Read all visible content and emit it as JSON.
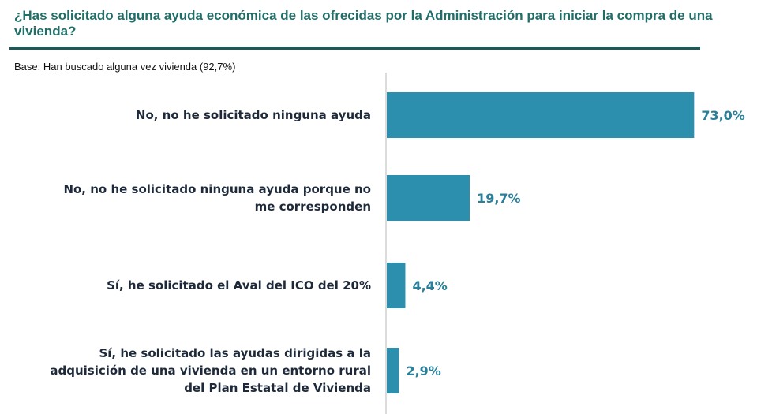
{
  "title": "¿Has solicitado alguna ayuda económica de las ofrecidas por la Administración para iniciar la compra de una vivienda?",
  "subtitle": "Base: Han buscado alguna vez vivienda (92,7%)",
  "colors": {
    "bar": "#2d8fae",
    "value": "#2a7f9b",
    "title": "#1f6e67",
    "axis": "#d0d0d0"
  },
  "chart_data": {
    "type": "bar",
    "orientation": "horizontal",
    "categories": [
      [
        "No, no he solicitado ninguna ayuda"
      ],
      [
        "No, no he solicitado ninguna ayuda porque no",
        "me corresponden"
      ],
      [
        "Sí, he solicitado el Aval del ICO del 20%"
      ],
      [
        "Sí, he solicitado las ayudas dirigidas a la",
        "adquisición de una vivienda en un entorno rural",
        "del Plan Estatal de Vivienda"
      ]
    ],
    "values": [
      73.0,
      19.7,
      4.4,
      2.9
    ],
    "value_labels": [
      "73,0%",
      "19,7%",
      "4,4%",
      "2,9%"
    ],
    "xlim": [
      0,
      75
    ],
    "grid": false
  }
}
